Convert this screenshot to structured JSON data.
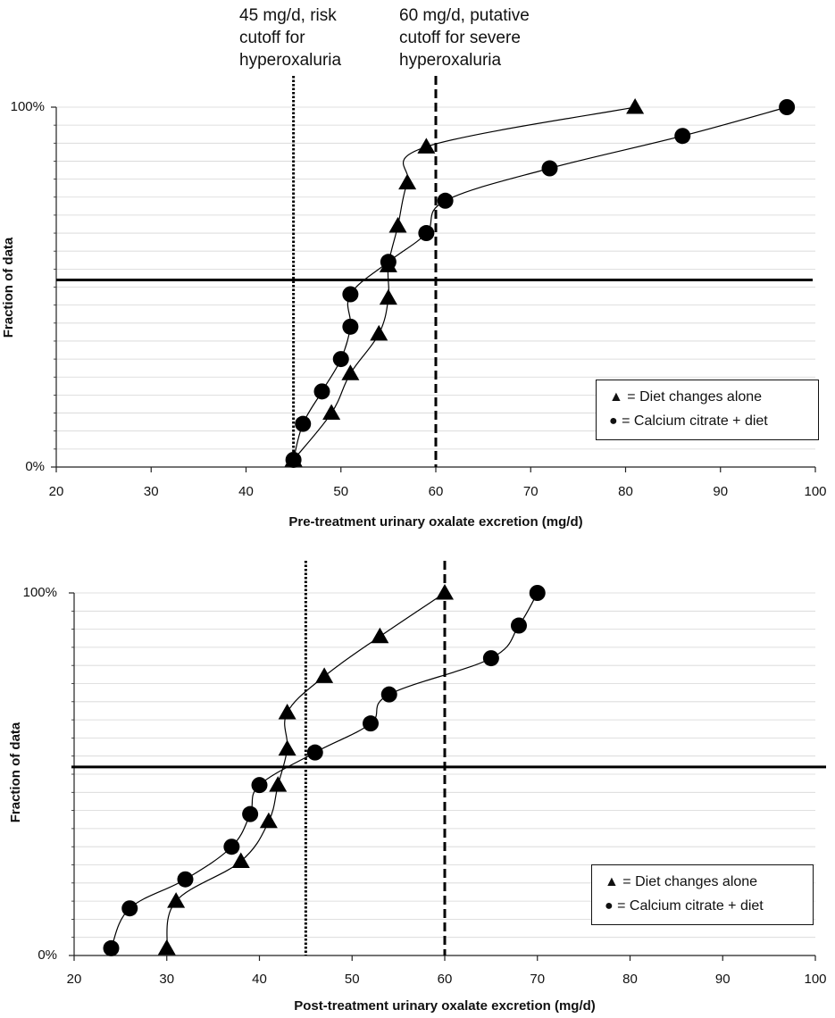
{
  "chart_data": [
    {
      "type": "line",
      "xlabel": "Pre-treatment urinary oxalate excretion (mg/d)",
      "ylabel": "Fraction of data",
      "xlim": [
        20,
        100
      ],
      "xticks": [
        "20",
        "30",
        "40",
        "50",
        "60",
        "70",
        "80",
        "90",
        "100"
      ],
      "ylim": [
        0,
        1
      ],
      "yticks": [
        "0%",
        "100%"
      ],
      "grid": "horizontal light gridlines",
      "legend_position": "lower-right",
      "series": [
        {
          "name": "Diet changes alone",
          "marker": "triangle",
          "points": [
            [
              45,
              0.02
            ],
            [
              49,
              0.15
            ],
            [
              51,
              0.26
            ],
            [
              54,
              0.37
            ],
            [
              55,
              0.47
            ],
            [
              55,
              0.56
            ],
            [
              56,
              0.67
            ],
            [
              57,
              0.79
            ],
            [
              59,
              0.89
            ],
            [
              81,
              1.0
            ]
          ]
        },
        {
          "name": "Calcium citrate + diet",
          "marker": "circle",
          "points": [
            [
              45,
              0.02
            ],
            [
              46,
              0.12
            ],
            [
              48,
              0.21
            ],
            [
              50,
              0.3
            ],
            [
              51,
              0.39
            ],
            [
              51,
              0.48
            ],
            [
              55,
              0.57
            ],
            [
              59,
              0.65
            ],
            [
              61,
              0.74
            ],
            [
              72,
              0.83
            ],
            [
              86,
              0.92
            ],
            [
              97,
              1.0
            ]
          ]
        }
      ],
      "reference_lines": [
        {
          "x": 45,
          "style": "dotted",
          "label": "45 mg/d, risk\ncutoff for\nhyperoxaluria"
        },
        {
          "x": 60,
          "style": "dashed",
          "label": "60 mg/d, putative\ncutoff for severe\nhyperoxaluria"
        },
        {
          "y": 0.52,
          "style": "solid"
        }
      ],
      "legend": [
        "= Diet changes alone",
        "= Calcium citrate + diet"
      ]
    },
    {
      "type": "line",
      "xlabel": "Post-treatment urinary oxalate excretion (mg/d)",
      "ylabel": "Fraction of data",
      "xlim": [
        20,
        100
      ],
      "xticks": [
        "20",
        "30",
        "40",
        "50",
        "60",
        "70",
        "80",
        "90",
        "100"
      ],
      "ylim": [
        0,
        1
      ],
      "yticks": [
        "0%",
        "100%"
      ],
      "grid": "horizontal light gridlines",
      "legend_position": "lower-right",
      "series": [
        {
          "name": "Diet changes alone",
          "marker": "triangle",
          "points": [
            [
              30,
              0.02
            ],
            [
              31,
              0.15
            ],
            [
              38,
              0.26
            ],
            [
              41,
              0.37
            ],
            [
              42,
              0.47
            ],
            [
              43,
              0.57
            ],
            [
              43,
              0.67
            ],
            [
              47,
              0.77
            ],
            [
              53,
              0.88
            ],
            [
              60,
              1.0
            ]
          ]
        },
        {
          "name": "Calcium citrate + diet",
          "marker": "circle",
          "points": [
            [
              24,
              0.02
            ],
            [
              26,
              0.13
            ],
            [
              32,
              0.21
            ],
            [
              37,
              0.3
            ],
            [
              39,
              0.39
            ],
            [
              40,
              0.47
            ],
            [
              46,
              0.56
            ],
            [
              52,
              0.64
            ],
            [
              54,
              0.72
            ],
            [
              65,
              0.82
            ],
            [
              68,
              0.91
            ],
            [
              70,
              1.0
            ]
          ]
        }
      ],
      "reference_lines": [
        {
          "x": 45,
          "style": "dotted"
        },
        {
          "x": 60,
          "style": "dashed"
        },
        {
          "y": 0.52,
          "style": "solid"
        }
      ],
      "legend": [
        "= Diet changes alone",
        "= Calcium citrate + diet"
      ]
    }
  ]
}
